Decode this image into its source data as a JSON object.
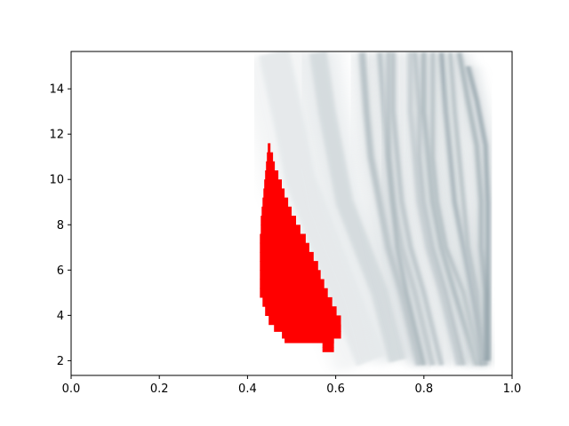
{
  "chart_data": {
    "type": "heatmap",
    "title": "",
    "xlabel": "",
    "ylabel": "",
    "xlim": [
      0.0,
      1.0
    ],
    "ylim": [
      1.35,
      15.65
    ],
    "x_ticks": [
      "0.0",
      "0.2",
      "0.4",
      "0.6",
      "0.8",
      "1.0"
    ],
    "x_tick_values": [
      0.0,
      0.2,
      0.4,
      0.6,
      0.8,
      1.0
    ],
    "y_ticks": [
      "2",
      "4",
      "6",
      "8",
      "10",
      "12",
      "14"
    ],
    "y_tick_values": [
      2,
      4,
      6,
      8,
      10,
      12,
      14
    ],
    "grid": false,
    "colormap": "white-to-dark-slate",
    "colors": {
      "heat_low": "#ffffff",
      "heat_high": "#1e3f4e",
      "highlight": "#ff0000",
      "axes": "#000000"
    },
    "highlight_region": {
      "label": "",
      "color": "#ff0000",
      "boundary": [
        {
          "y": 11.6,
          "x_left": 0.446,
          "x_right": 0.452
        },
        {
          "y": 11.2,
          "x_left": 0.444,
          "x_right": 0.458
        },
        {
          "y": 10.8,
          "x_left": 0.442,
          "x_right": 0.462
        },
        {
          "y": 10.4,
          "x_left": 0.44,
          "x_right": 0.47
        },
        {
          "y": 10.0,
          "x_left": 0.438,
          "x_right": 0.478
        },
        {
          "y": 9.6,
          "x_left": 0.436,
          "x_right": 0.484
        },
        {
          "y": 9.2,
          "x_left": 0.434,
          "x_right": 0.492
        },
        {
          "y": 8.8,
          "x_left": 0.432,
          "x_right": 0.5
        },
        {
          "y": 8.4,
          "x_left": 0.43,
          "x_right": 0.51
        },
        {
          "y": 8.0,
          "x_left": 0.43,
          "x_right": 0.52
        },
        {
          "y": 7.6,
          "x_left": 0.428,
          "x_right": 0.532
        },
        {
          "y": 7.2,
          "x_left": 0.428,
          "x_right": 0.54
        },
        {
          "y": 6.8,
          "x_left": 0.428,
          "x_right": 0.55
        },
        {
          "y": 6.4,
          "x_left": 0.428,
          "x_right": 0.56
        },
        {
          "y": 6.0,
          "x_left": 0.428,
          "x_right": 0.566
        },
        {
          "y": 5.6,
          "x_left": 0.428,
          "x_right": 0.574
        },
        {
          "y": 5.2,
          "x_left": 0.428,
          "x_right": 0.582
        },
        {
          "y": 4.8,
          "x_left": 0.434,
          "x_right": 0.592
        },
        {
          "y": 4.4,
          "x_left": 0.44,
          "x_right": 0.602
        },
        {
          "y": 4.0,
          "x_left": 0.448,
          "x_right": 0.612
        },
        {
          "y": 3.6,
          "x_left": 0.46,
          "x_right": 0.612
        },
        {
          "y": 3.3,
          "x_left": 0.478,
          "x_right": 0.612
        },
        {
          "y": 3.0,
          "x_left": 0.484,
          "x_right": 0.596
        },
        {
          "y": 2.8,
          "x_left": 0.57,
          "x_right": 0.596
        },
        {
          "y": 2.6,
          "x_left": 0.57,
          "x_right": 0.596
        }
      ]
    },
    "density_bands": [
      {
        "x": [
          0.46,
          0.5,
          0.52,
          0.56,
          0.6,
          0.64,
          0.68
        ],
        "y": [
          15.6,
          12.0,
          10.0,
          8.0,
          6.0,
          4.0,
          2.0
        ],
        "intensity": 0.12,
        "width": 0.07
      },
      {
        "x": [
          0.56,
          0.58,
          0.6,
          0.62,
          0.66,
          0.7,
          0.74
        ],
        "y": [
          15.6,
          13.0,
          11.0,
          9.0,
          7.0,
          5.0,
          2.0
        ],
        "intensity": 0.2,
        "width": 0.04
      },
      {
        "x": [
          0.66,
          0.67,
          0.68,
          0.7,
          0.72,
          0.75,
          0.79
        ],
        "y": [
          15.6,
          13.0,
          11.0,
          9.0,
          7.0,
          5.0,
          1.8
        ],
        "intensity": 0.35,
        "width": 0.015
      },
      {
        "x": [
          0.7,
          0.71,
          0.72,
          0.73,
          0.75,
          0.78,
          0.82
        ],
        "y": [
          15.6,
          13.0,
          11.0,
          9.0,
          7.0,
          5.0,
          1.8
        ],
        "intensity": 0.35,
        "width": 0.012
      },
      {
        "x": [
          0.72,
          0.72,
          0.72,
          0.73,
          0.74,
          0.76,
          0.8
        ],
        "y": [
          15.6,
          13.0,
          11.0,
          9.0,
          7.0,
          5.0,
          1.8
        ],
        "intensity": 0.45,
        "width": 0.008
      },
      {
        "x": [
          0.73,
          0.73,
          0.74,
          0.75,
          0.77,
          0.8,
          0.84
        ],
        "y": [
          15.6,
          13.0,
          11.0,
          9.0,
          7.0,
          5.0,
          1.8
        ],
        "intensity": 0.35,
        "width": 0.01
      },
      {
        "x": [
          0.77,
          0.77,
          0.78,
          0.79,
          0.81,
          0.84,
          0.88
        ],
        "y": [
          15.6,
          13.0,
          11.0,
          9.0,
          7.0,
          5.0,
          1.8
        ],
        "intensity": 0.3,
        "width": 0.012
      },
      {
        "x": [
          0.78,
          0.79,
          0.79,
          0.8,
          0.82,
          0.85,
          0.89
        ],
        "y": [
          15.6,
          13.0,
          11.0,
          9.0,
          7.0,
          5.0,
          1.8
        ],
        "intensity": 0.4,
        "width": 0.008
      },
      {
        "x": [
          0.8,
          0.8,
          0.81,
          0.82,
          0.84,
          0.87,
          0.92
        ],
        "y": [
          15.6,
          13.0,
          11.0,
          9.0,
          7.0,
          5.0,
          1.8
        ],
        "intensity": 0.45,
        "width": 0.01
      },
      {
        "x": [
          0.82,
          0.82,
          0.82,
          0.83,
          0.85,
          0.89,
          0.93
        ],
        "y": [
          15.6,
          13.0,
          11.0,
          9.0,
          7.0,
          5.0,
          1.8
        ],
        "intensity": 0.4,
        "width": 0.008
      },
      {
        "x": [
          0.84,
          0.85,
          0.86,
          0.87,
          0.89,
          0.91,
          0.94
        ],
        "y": [
          15.6,
          13.0,
          11.0,
          9.0,
          7.0,
          5.0,
          1.8
        ],
        "intensity": 0.5,
        "width": 0.01
      },
      {
        "x": [
          0.86,
          0.87,
          0.88,
          0.89,
          0.9,
          0.92,
          0.93
        ],
        "y": [
          15.6,
          13.0,
          11.0,
          9.0,
          7.0,
          5.0,
          1.8
        ],
        "intensity": 0.4,
        "width": 0.008
      },
      {
        "x": [
          0.88,
          0.9,
          0.92,
          0.93,
          0.93,
          0.94,
          0.94
        ],
        "y": [
          15.6,
          13.5,
          11.5,
          9.0,
          7.0,
          5.0,
          2.0
        ],
        "intensity": 0.45,
        "width": 0.01
      },
      {
        "x": [
          0.9,
          0.92,
          0.94,
          0.945,
          0.945,
          0.945,
          0.945
        ],
        "y": [
          15.0,
          13.5,
          11.5,
          9.0,
          7.0,
          5.0,
          2.0
        ],
        "intensity": 0.55,
        "width": 0.008
      }
    ],
    "dark_streaks": [
      {
        "x": 0.92,
        "y": [
          1.8,
          4.8
        ],
        "intensity": 0.85
      },
      {
        "x": 0.935,
        "y": [
          2.0,
          4.0
        ],
        "intensity": 0.7
      },
      {
        "x": 0.945,
        "y": [
          1.8,
          3.5
        ],
        "intensity": 0.75
      },
      {
        "x": 0.88,
        "y": [
          2.0,
          5.0
        ],
        "intensity": 0.6
      },
      {
        "x": 0.86,
        "y": [
          2.0,
          4.5
        ],
        "intensity": 0.5
      },
      {
        "x": 0.895,
        "y": [
          2.2,
          5.6
        ],
        "intensity": 0.5
      },
      {
        "x": 0.94,
        "y": [
          6.5,
          9.5
        ],
        "intensity": 0.5
      },
      {
        "x": 0.945,
        "y": [
          10.0,
          11.6
        ],
        "intensity": 0.45
      }
    ]
  }
}
